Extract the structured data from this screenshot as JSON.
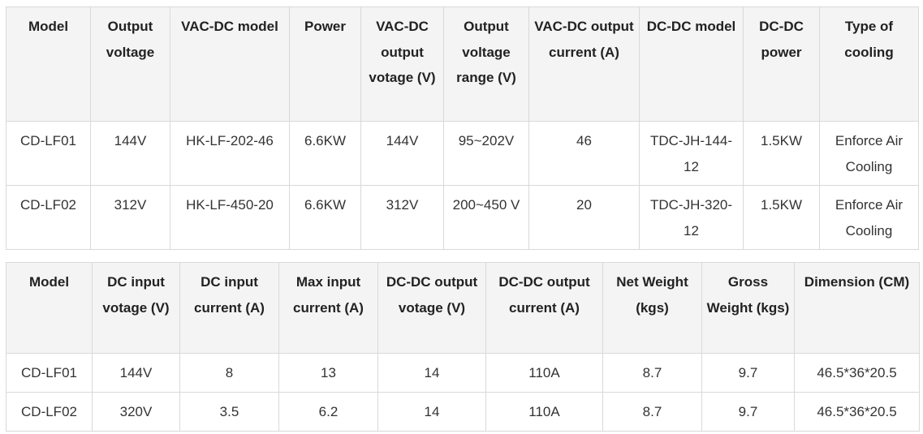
{
  "table1": {
    "headers": [
      "Model",
      "Output voltage",
      "VAC-DC model",
      "Power",
      "VAC-DC output votage (V)",
      "Output voltage range (V)",
      "VAC-DC output current (A)",
      "DC-DC model",
      "DC-DC power",
      "Type of cooling"
    ],
    "rows": [
      [
        "CD-LF01",
        "144V",
        "HK-LF-202-46",
        "6.6KW",
        "144V",
        "95~202V",
        "46",
        "TDC-JH-144-12",
        "1.5KW",
        "Enforce Air Cooling"
      ],
      [
        "CD-LF02",
        "312V",
        "HK-LF-450-20",
        "6.6KW",
        "312V",
        "200~450 V",
        "20",
        "TDC-JH-320-12",
        "1.5KW",
        "Enforce Air Cooling"
      ]
    ]
  },
  "table2": {
    "headers": [
      "Model",
      "DC input votage (V)",
      "DC input current (A)",
      "Max input current (A)",
      "DC-DC output votage (V)",
      "DC-DC output current (A)",
      "Net Weight (kgs)",
      "Gross Weight (kgs)",
      "Dimension (CM)"
    ],
    "rows": [
      [
        "CD-LF01",
        "144V",
        "8",
        "13",
        "14",
        "110A",
        "8.7",
        "9.7",
        "46.5*36*20.5"
      ],
      [
        "CD-LF02",
        "320V",
        "3.5",
        "6.2",
        "14",
        "110A",
        "8.7",
        "9.7",
        "46.5*36*20.5"
      ]
    ]
  }
}
